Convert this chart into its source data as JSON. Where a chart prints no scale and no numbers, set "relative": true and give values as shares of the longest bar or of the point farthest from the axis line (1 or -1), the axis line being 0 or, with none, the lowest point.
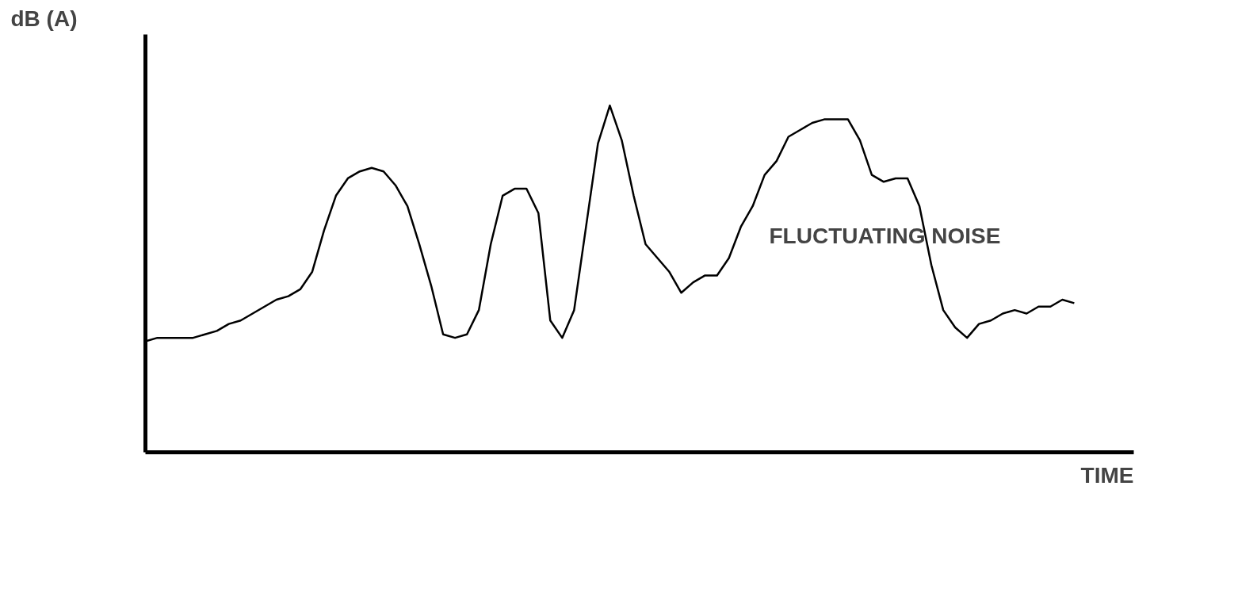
{
  "chart_data": {
    "type": "line",
    "relative": true,
    "ylabel": "dB (A)",
    "xlabel": "TIME",
    "annotations": [
      "FLUCTUATING NOISE"
    ],
    "tick_labels": false,
    "grid": false,
    "marker": "none",
    "line_style": "solid",
    "categories": [
      null,
      null,
      null,
      null,
      null,
      null,
      null,
      null,
      null,
      null,
      null,
      null,
      null,
      null,
      null,
      null,
      null,
      null,
      null,
      null,
      null,
      null,
      null,
      null,
      null,
      null,
      null,
      null,
      null,
      null,
      null,
      null,
      null,
      null,
      null,
      null,
      null,
      null,
      null,
      null,
      null,
      null,
      null,
      null,
      null,
      null,
      null,
      null,
      null,
      null,
      null,
      null,
      null,
      null,
      null,
      null,
      null,
      null,
      null,
      null,
      null,
      null,
      null,
      null,
      null,
      null,
      null,
      null,
      null,
      null,
      null,
      null,
      null,
      null,
      null,
      null,
      null,
      null,
      null,
      null,
      null,
      null,
      null,
      null
    ],
    "series": [
      {
        "color": "#000000",
        "values": [
          0.32,
          0.33,
          0.33,
          0.33,
          0.33,
          0.34,
          0.35,
          0.37,
          0.38,
          0.4,
          0.42,
          0.44,
          0.45,
          0.47,
          0.52,
          0.64,
          0.74,
          0.79,
          0.81,
          0.82,
          0.81,
          0.77,
          0.71,
          0.6,
          0.48,
          0.34,
          0.33,
          0.34,
          0.41,
          0.6,
          0.74,
          0.76,
          0.76,
          0.69,
          0.38,
          0.33,
          0.41,
          0.65,
          0.89,
          1.0,
          0.9,
          0.74,
          0.6,
          0.56,
          0.52,
          0.46,
          0.49,
          0.51,
          0.51,
          0.56,
          0.65,
          0.71,
          0.8,
          0.84,
          0.91,
          0.93,
          0.95,
          0.96,
          0.96,
          0.96,
          0.9,
          0.8,
          0.78,
          0.79,
          0.79,
          0.71,
          0.54,
          0.41,
          0.36,
          0.33,
          0.37,
          0.38,
          0.4,
          0.41,
          0.4,
          0.42,
          0.42,
          0.44,
          0.43,
          null,
          null,
          null,
          null,
          null
        ]
      }
    ]
  }
}
